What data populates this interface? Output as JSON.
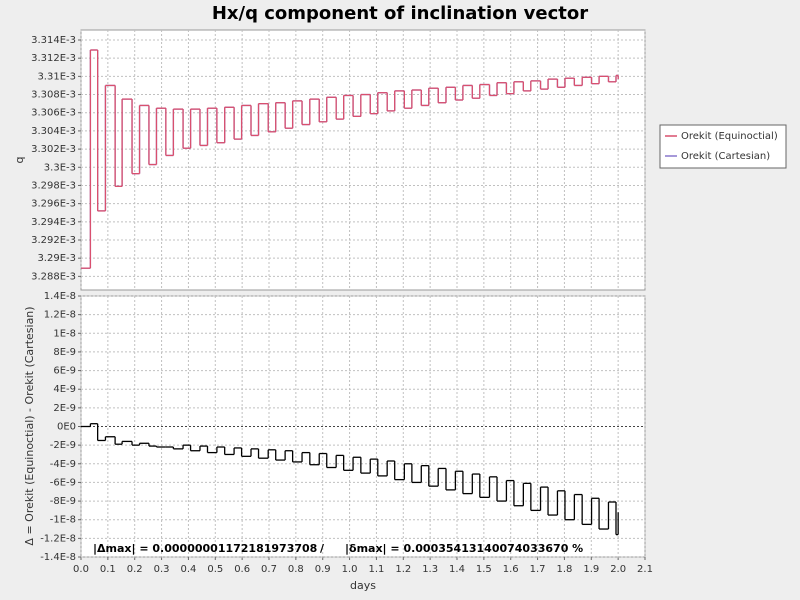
{
  "chart_data": [
    {
      "type": "line",
      "title": "Hx/q component of inclination vector",
      "ylabel": "q",
      "step": true,
      "grid": true,
      "legend": "right",
      "x": [
        0,
        0.035,
        0.062,
        0.091,
        0.127,
        0.153,
        0.19,
        0.218,
        0.253,
        0.281,
        0.316,
        0.344,
        0.38,
        0.408,
        0.443,
        0.471,
        0.506,
        0.535,
        0.57,
        0.598,
        0.633,
        0.661,
        0.697,
        0.725,
        0.76,
        0.788,
        0.823,
        0.852,
        0.887,
        0.915,
        0.95,
        0.978,
        1.013,
        1.042,
        1.077,
        1.105,
        1.14,
        1.168,
        1.204,
        1.232,
        1.267,
        1.295,
        1.33,
        1.359,
        1.394,
        1.422,
        1.457,
        1.485,
        1.521,
        1.549,
        1.584,
        1.612,
        1.647,
        1.675,
        1.711,
        1.739,
        1.774,
        1.802,
        1.837,
        1.866,
        1.901,
        1.929,
        1.964,
        1.992,
        2.0
      ],
      "series": [
        {
          "name": "Orekit (Cartesian)",
          "color": "#8877cc",
          "values": [
            0.0032889,
            0.0033129,
            0.0032952,
            0.003309,
            0.0032979,
            0.0033075,
            0.0032993,
            0.0033068,
            0.0033003,
            0.0033065,
            0.0033013,
            0.0033064,
            0.0033021,
            0.0033064,
            0.0033024,
            0.0033065,
            0.0033027,
            0.0033066,
            0.0033031,
            0.0033068,
            0.0033035,
            0.003307,
            0.0033039,
            0.0033071,
            0.0033043,
            0.0033073,
            0.0033047,
            0.0033075,
            0.003305,
            0.0033077,
            0.0033053,
            0.0033079,
            0.0033056,
            0.003308,
            0.0033059,
            0.0033082,
            0.0033062,
            0.0033084,
            0.0033065,
            0.0033085,
            0.0033068,
            0.0033087,
            0.0033071,
            0.0033088,
            0.0033074,
            0.003309,
            0.0033076,
            0.0033091,
            0.0033079,
            0.0033093,
            0.0033081,
            0.0033094,
            0.0033084,
            0.0033095,
            0.0033086,
            0.0033097,
            0.0033088,
            0.0033098,
            0.003309,
            0.0033099,
            0.0033092,
            0.00331,
            0.0033094,
            0.0033101,
            0.0033097
          ]
        },
        {
          "name": "Orekit (Equinoctial)",
          "color": "#d9506e",
          "values": [
            0.0032889,
            0.0033129,
            0.0032952,
            0.003309,
            0.0032979,
            0.0033075,
            0.0032993,
            0.0033068,
            0.0033003,
            0.0033065,
            0.0033013,
            0.0033064,
            0.0033021,
            0.0033064,
            0.0033024,
            0.0033065,
            0.0033027,
            0.0033066,
            0.0033031,
            0.0033068,
            0.0033035,
            0.003307,
            0.0033039,
            0.0033071,
            0.0033043,
            0.0033073,
            0.0033047,
            0.0033075,
            0.003305,
            0.0033077,
            0.0033053,
            0.0033079,
            0.0033056,
            0.003308,
            0.0033059,
            0.0033082,
            0.0033062,
            0.0033084,
            0.0033065,
            0.0033085,
            0.0033068,
            0.0033087,
            0.0033071,
            0.0033088,
            0.0033074,
            0.003309,
            0.0033076,
            0.0033091,
            0.0033079,
            0.0033093,
            0.0033081,
            0.0033094,
            0.0033084,
            0.0033095,
            0.0033086,
            0.0033097,
            0.0033088,
            0.0033098,
            0.003309,
            0.0033099,
            0.0033092,
            0.00331,
            0.0033094,
            0.0033101,
            0.0033097
          ]
        }
      ],
      "ylim": [
        0.0032865,
        0.0033151
      ],
      "yticks": [
        {
          "value": 0.003288,
          "label": "3.288E-3"
        },
        {
          "value": 0.00329,
          "label": "3.29E-3"
        },
        {
          "value": 0.003292,
          "label": "3.292E-3"
        },
        {
          "value": 0.003294,
          "label": "3.294E-3"
        },
        {
          "value": 0.003296,
          "label": "3.296E-3"
        },
        {
          "value": 0.003298,
          "label": "3.298E-3"
        },
        {
          "value": 0.0033,
          "label": "3.3E-3"
        },
        {
          "value": 0.003302,
          "label": "3.302E-3"
        },
        {
          "value": 0.003304,
          "label": "3.304E-3"
        },
        {
          "value": 0.003306,
          "label": "3.306E-3"
        },
        {
          "value": 0.003308,
          "label": "3.308E-3"
        },
        {
          "value": 0.00331,
          "label": "3.31E-3"
        },
        {
          "value": 0.003312,
          "label": "3.312E-3"
        },
        {
          "value": 0.003314,
          "label": "3.314E-3"
        }
      ]
    },
    {
      "type": "line",
      "ylabel": "Δ = Orekit (Equinoctial) - Orekit (Cartesian)",
      "xlabel": "days",
      "step": true,
      "grid": true,
      "color": "#000000",
      "x": [
        0,
        0.035,
        0.062,
        0.091,
        0.127,
        0.153,
        0.19,
        0.218,
        0.253,
        0.281,
        0.316,
        0.344,
        0.38,
        0.408,
        0.443,
        0.471,
        0.506,
        0.535,
        0.57,
        0.598,
        0.633,
        0.661,
        0.697,
        0.725,
        0.76,
        0.788,
        0.823,
        0.852,
        0.887,
        0.915,
        0.95,
        0.978,
        1.013,
        1.042,
        1.077,
        1.105,
        1.14,
        1.168,
        1.204,
        1.232,
        1.267,
        1.295,
        1.33,
        1.359,
        1.394,
        1.422,
        1.457,
        1.485,
        1.521,
        1.549,
        1.584,
        1.612,
        1.647,
        1.675,
        1.711,
        1.739,
        1.774,
        1.802,
        1.837,
        1.866,
        1.901,
        1.929,
        1.964,
        1.992,
        2.0
      ],
      "values": [
        0,
        3e-10,
        -1.5e-09,
        -1.1e-09,
        -1.9e-09,
        -1.6e-09,
        -2e-09,
        -1.8e-09,
        -2.1e-09,
        -2.2e-09,
        -2.2e-09,
        -2.4e-09,
        -2e-09,
        -2.6e-09,
        -2.1e-09,
        -2.8e-09,
        -2.2e-09,
        -3e-09,
        -2.3e-09,
        -3.2e-09,
        -2.4e-09,
        -3.4e-09,
        -2.5e-09,
        -3.6e-09,
        -2.6e-09,
        -3.8e-09,
        -2.8e-09,
        -4.1e-09,
        -2.9e-09,
        -4.4e-09,
        -3.1e-09,
        -4.7e-09,
        -3.3e-09,
        -5e-09,
        -3.5e-09,
        -5.3e-09,
        -3.7e-09,
        -5.7e-09,
        -4e-09,
        -6e-09,
        -4.2e-09,
        -6.4e-09,
        -4.5e-09,
        -6.8e-09,
        -4.8e-09,
        -7.2e-09,
        -5.1e-09,
        -7.6e-09,
        -5.4e-09,
        -8e-09,
        -5.8e-09,
        -8.5e-09,
        -6.1e-09,
        -9e-09,
        -6.5e-09,
        -9.5e-09,
        -6.9e-09,
        -1e-08,
        -7.3e-09,
        -1.05e-08,
        -7.7e-09,
        -1.1e-08,
        -8.1e-09,
        -1.16e-08,
        -9.2e-09
      ],
      "ylim": [
        -1.4e-08,
        1.4e-08
      ],
      "yticks": [
        {
          "value": -1.4e-08,
          "label": "-1.4E-8"
        },
        {
          "value": -1.2e-08,
          "label": "-1.2E-8"
        },
        {
          "value": -1e-08,
          "label": "-1E-8"
        },
        {
          "value": -8e-09,
          "label": "-8E-9"
        },
        {
          "value": -6e-09,
          "label": "-6E-9"
        },
        {
          "value": -4e-09,
          "label": "-4E-9"
        },
        {
          "value": -2e-09,
          "label": "-2E-9"
        },
        {
          "value": 0,
          "label": "0E0"
        },
        {
          "value": 2e-09,
          "label": "2E-9"
        },
        {
          "value": 4e-09,
          "label": "4E-9"
        },
        {
          "value": 6e-09,
          "label": "6E-9"
        },
        {
          "value": 8e-09,
          "label": "8E-9"
        },
        {
          "value": 1e-08,
          "label": "1E-8"
        },
        {
          "value": 1.2e-08,
          "label": "1.2E-8"
        },
        {
          "value": 1.4e-08,
          "label": "1.4E-8"
        }
      ],
      "xlim": [
        0,
        2.1
      ],
      "xticks": [
        {
          "value": 0,
          "label": "0.0"
        },
        0.1,
        0.2,
        0.3,
        0.4,
        0.5,
        0.6,
        0.7,
        0.8,
        0.9,
        {
          "value": 1,
          "label": "1.0"
        },
        1.1,
        1.2,
        1.3,
        1.4,
        1.5,
        1.6,
        1.7,
        1.8,
        1.9,
        {
          "value": 2,
          "label": "2.0"
        },
        2.1
      ],
      "annotations": [
        "|Δmax| = 0.00000001172181973708",
        "/",
        "|δmax| = 0.00035413140074033670 %"
      ]
    }
  ]
}
